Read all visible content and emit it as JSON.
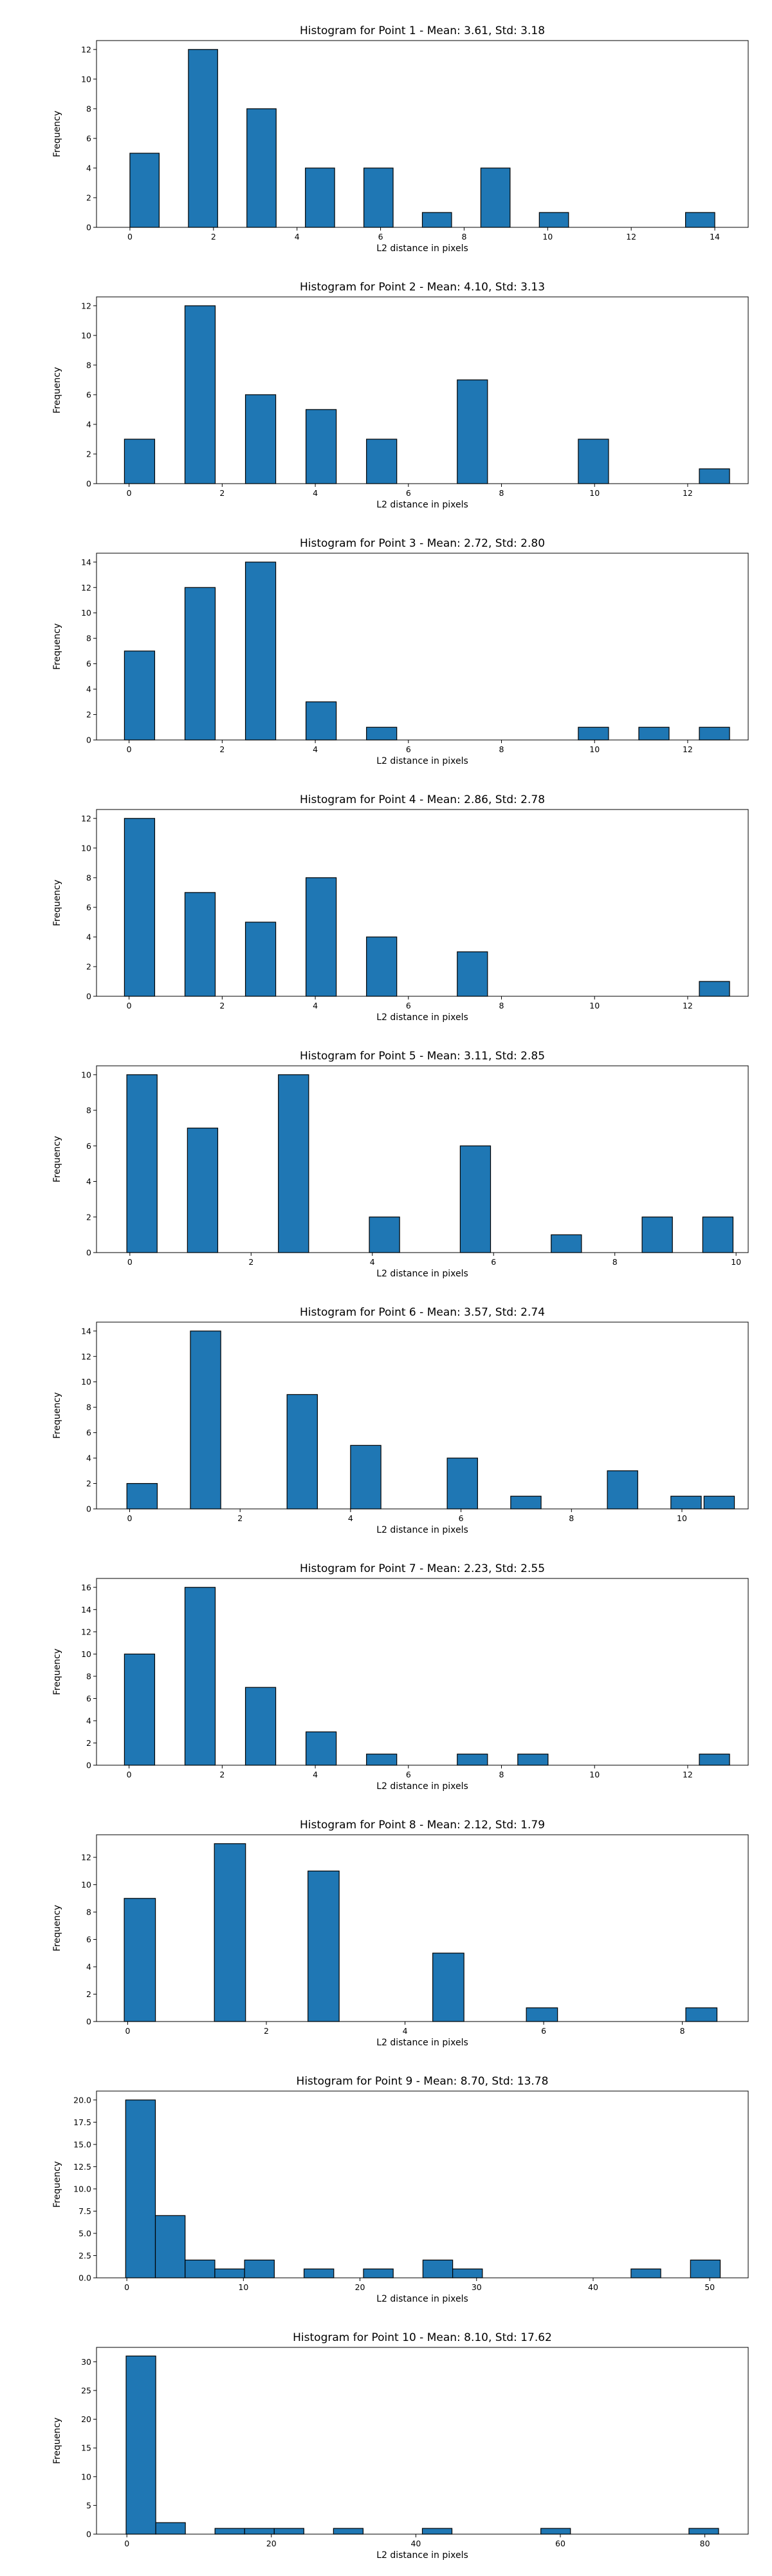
{
  "chart_data": [
    {
      "type": "bar",
      "title": "Histogram for Point 1 - Mean: 3.61, Std: 3.18",
      "xlabel": "L2 distance in pixels",
      "ylabel": "Frequency",
      "xlim": [
        -0.8,
        14.8
      ],
      "ylim": [
        0,
        12.6
      ],
      "xticks": [
        0,
        2,
        4,
        6,
        8,
        10,
        12,
        14
      ],
      "yticks": [
        0,
        2,
        4,
        6,
        8,
        10,
        12
      ],
      "bins": [
        [
          0,
          0.7,
          5
        ],
        [
          1.4,
          2.1,
          12
        ],
        [
          2.8,
          3.5,
          8
        ],
        [
          4.2,
          4.9,
          4
        ],
        [
          5.6,
          6.3,
          4
        ],
        [
          7.0,
          7.7,
          1
        ],
        [
          8.4,
          9.1,
          4
        ],
        [
          9.8,
          10.5,
          1
        ],
        [
          13.3,
          14.0,
          1
        ]
      ]
    },
    {
      "type": "bar",
      "title": "Histogram for Point 2 - Mean: 4.10, Std: 3.13",
      "xlabel": "L2 distance in pixels",
      "ylabel": "Frequency",
      "xlim": [
        -0.7,
        13.3
      ],
      "ylim": [
        0,
        12.6
      ],
      "xticks": [
        0,
        2,
        4,
        6,
        8,
        10,
        12
      ],
      "yticks": [
        0,
        2,
        4,
        6,
        8,
        10,
        12
      ],
      "bins": [
        [
          -0.1,
          0.55,
          3
        ],
        [
          1.2,
          1.85,
          12
        ],
        [
          2.5,
          3.15,
          6
        ],
        [
          3.8,
          4.45,
          5
        ],
        [
          5.1,
          5.75,
          3
        ],
        [
          7.05,
          7.7,
          7
        ],
        [
          9.65,
          10.3,
          3
        ],
        [
          12.25,
          12.9,
          1
        ]
      ]
    },
    {
      "type": "bar",
      "title": "Histogram for Point 3 - Mean: 2.72, Std: 2.80",
      "xlabel": "L2 distance in pixels",
      "ylabel": "Frequency",
      "xlim": [
        -0.7,
        13.3
      ],
      "ylim": [
        0,
        14.7
      ],
      "xticks": [
        0,
        2,
        4,
        6,
        8,
        10,
        12
      ],
      "yticks": [
        0,
        2,
        4,
        6,
        8,
        10,
        12,
        14
      ],
      "bins": [
        [
          -0.1,
          0.55,
          7
        ],
        [
          1.2,
          1.85,
          12
        ],
        [
          2.5,
          3.15,
          14
        ],
        [
          3.8,
          4.45,
          3
        ],
        [
          5.1,
          5.75,
          1
        ],
        [
          9.65,
          10.3,
          1
        ],
        [
          10.95,
          11.6,
          1
        ],
        [
          12.25,
          12.9,
          1
        ]
      ]
    },
    {
      "type": "bar",
      "title": "Histogram for Point 4 - Mean: 2.86, Std: 2.78",
      "xlabel": "L2 distance in pixels",
      "ylabel": "Frequency",
      "xlim": [
        -0.7,
        13.3
      ],
      "ylim": [
        0,
        12.6
      ],
      "xticks": [
        0,
        2,
        4,
        6,
        8,
        10,
        12
      ],
      "yticks": [
        0,
        2,
        4,
        6,
        8,
        10,
        12
      ],
      "bins": [
        [
          -0.1,
          0.55,
          12
        ],
        [
          1.2,
          1.85,
          7
        ],
        [
          2.5,
          3.15,
          5
        ],
        [
          3.8,
          4.45,
          8
        ],
        [
          5.1,
          5.75,
          4
        ],
        [
          7.05,
          7.7,
          3
        ],
        [
          12.25,
          12.9,
          1
        ]
      ]
    },
    {
      "type": "bar",
      "title": "Histogram for Point 5 - Mean: 3.11, Std: 2.85",
      "xlabel": "L2 distance in pixels",
      "ylabel": "Frequency",
      "xlim": [
        -0.55,
        10.2
      ],
      "ylim": [
        0,
        10.5
      ],
      "xticks": [
        0,
        2,
        4,
        6,
        8,
        10
      ],
      "yticks": [
        0,
        2,
        4,
        6,
        8,
        10
      ],
      "bins": [
        [
          -0.05,
          0.45,
          10
        ],
        [
          0.95,
          1.45,
          7
        ],
        [
          2.45,
          2.95,
          10
        ],
        [
          3.95,
          4.45,
          2
        ],
        [
          5.45,
          5.95,
          6
        ],
        [
          6.95,
          7.45,
          1
        ],
        [
          8.45,
          8.95,
          2
        ],
        [
          9.45,
          9.95,
          2
        ]
      ]
    },
    {
      "type": "bar",
      "title": "Histogram for Point 6 - Mean: 3.57, Std: 2.74",
      "xlabel": "L2 distance in pixels",
      "ylabel": "Frequency",
      "xlim": [
        -0.6,
        11.2
      ],
      "ylim": [
        0,
        14.7
      ],
      "xticks": [
        0,
        2,
        4,
        6,
        8,
        10
      ],
      "yticks": [
        0,
        2,
        4,
        6,
        8,
        10,
        12,
        14
      ],
      "bins": [
        [
          -0.05,
          0.5,
          2
        ],
        [
          1.1,
          1.65,
          14
        ],
        [
          2.85,
          3.4,
          9
        ],
        [
          4.0,
          4.55,
          5
        ],
        [
          5.75,
          6.3,
          4
        ],
        [
          6.9,
          7.45,
          1
        ],
        [
          8.65,
          9.2,
          3
        ],
        [
          9.8,
          10.35,
          1
        ],
        [
          10.4,
          10.95,
          1
        ]
      ]
    },
    {
      "type": "bar",
      "title": "Histogram for Point 7 - Mean: 2.23, Std: 2.55",
      "xlabel": "L2 distance in pixels",
      "ylabel": "Frequency",
      "xlim": [
        -0.7,
        13.3
      ],
      "ylim": [
        0,
        16.8
      ],
      "xticks": [
        0,
        2,
        4,
        6,
        8,
        10,
        12
      ],
      "yticks": [
        0,
        2,
        4,
        6,
        8,
        10,
        12,
        14,
        16
      ],
      "bins": [
        [
          -0.1,
          0.55,
          10
        ],
        [
          1.2,
          1.85,
          16
        ],
        [
          2.5,
          3.15,
          7
        ],
        [
          3.8,
          4.45,
          3
        ],
        [
          5.1,
          5.75,
          1
        ],
        [
          7.05,
          7.7,
          1
        ],
        [
          8.35,
          9.0,
          1
        ],
        [
          12.25,
          12.9,
          1
        ]
      ]
    },
    {
      "type": "bar",
      "title": "Histogram for Point 8 - Mean: 2.12, Std: 1.79",
      "xlabel": "L2 distance in pixels",
      "ylabel": "Frequency",
      "xlim": [
        -0.45,
        8.95
      ],
      "ylim": [
        0,
        13.65
      ],
      "xticks": [
        0,
        2,
        4,
        6,
        8
      ],
      "yticks": [
        0,
        2,
        4,
        6,
        8,
        10,
        12
      ],
      "bins": [
        [
          -0.05,
          0.4,
          9
        ],
        [
          1.25,
          1.7,
          13
        ],
        [
          2.6,
          3.05,
          11
        ],
        [
          4.4,
          4.85,
          5
        ],
        [
          5.75,
          6.2,
          1
        ],
        [
          8.05,
          8.5,
          1
        ]
      ]
    },
    {
      "type": "bar",
      "title": "Histogram for Point 9 - Mean: 8.70, Std: 13.78",
      "xlabel": "L2 distance in pixels",
      "ylabel": "Frequency",
      "xlim": [
        -2.6,
        53.3
      ],
      "ylim": [
        0,
        21
      ],
      "xticks": [
        0,
        10,
        20,
        30,
        40,
        50
      ],
      "yticks": [
        0,
        2.5,
        5.0,
        7.5,
        10.0,
        12.5,
        15.0,
        17.5,
        20.0
      ],
      "ytick_labels": [
        "0.0",
        "2.5",
        "5.0",
        "7.5",
        "10.0",
        "12.5",
        "15.0",
        "17.5",
        "20.0"
      ],
      "bins": [
        [
          -0.1,
          2.45,
          20
        ],
        [
          2.45,
          5.0,
          7
        ],
        [
          5.0,
          7.55,
          2
        ],
        [
          7.55,
          10.1,
          1
        ],
        [
          10.1,
          12.65,
          2
        ],
        [
          15.2,
          17.75,
          1
        ],
        [
          20.3,
          22.85,
          1
        ],
        [
          25.4,
          27.95,
          2
        ],
        [
          27.95,
          30.5,
          1
        ],
        [
          43.25,
          45.8,
          1
        ],
        [
          48.35,
          50.9,
          2
        ]
      ]
    },
    {
      "type": "bar",
      "title": "Histogram for Point 10 - Mean: 8.10, Std: 17.62",
      "xlabel": "L2 distance in pixels",
      "ylabel": "Frequency",
      "xlim": [
        -4.2,
        86.0
      ],
      "ylim": [
        0,
        32.5
      ],
      "xticks": [
        0,
        20,
        40,
        60,
        80
      ],
      "yticks": [
        0,
        5,
        10,
        15,
        20,
        25,
        30
      ],
      "bins": [
        [
          -0.1,
          4.0,
          31
        ],
        [
          4.0,
          8.1,
          2
        ],
        [
          12.2,
          16.3,
          1
        ],
        [
          16.3,
          20.4,
          1
        ],
        [
          20.4,
          24.5,
          1
        ],
        [
          28.6,
          32.7,
          1
        ],
        [
          40.9,
          45.0,
          1
        ],
        [
          57.3,
          61.4,
          1
        ],
        [
          77.8,
          81.9,
          1
        ]
      ]
    }
  ]
}
